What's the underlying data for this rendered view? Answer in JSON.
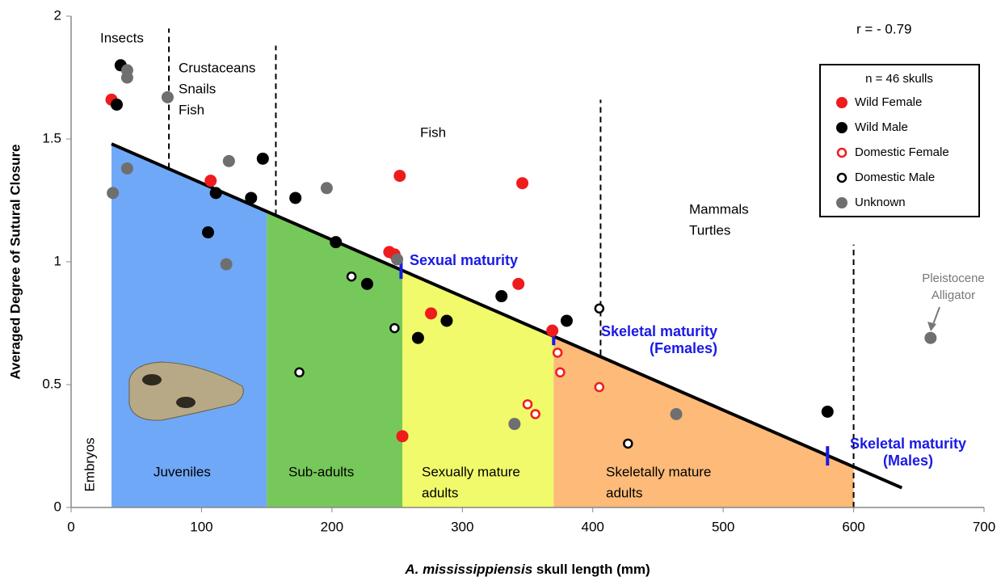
{
  "chart_data": {
    "type": "scatter",
    "x_label": [
      "A. mississippiensis",
      "skull length (mm)"
    ],
    "y_label": "Averaged Degree of Sutural Closure",
    "xlim": [
      0,
      700
    ],
    "xticks": [
      0,
      100,
      200,
      300,
      400,
      500,
      600,
      700
    ],
    "ylim": [
      0,
      2
    ],
    "yticks": [
      0,
      0.5,
      1,
      1.5,
      2
    ],
    "legend_title": "n = 46 skulls",
    "legend": "upper right",
    "correlation": "r = - 0.79",
    "series": [
      {
        "name": "Wild Female",
        "color": "#ee1c1c",
        "filled": true,
        "x": [
          31,
          107,
          252,
          346,
          244,
          248,
          343,
          276,
          369,
          254
        ],
        "values": [
          1.66,
          1.33,
          1.35,
          1.32,
          1.04,
          1.03,
          0.91,
          0.79,
          0.72,
          0.29
        ]
      },
      {
        "name": "Wild Male",
        "color": "#000000",
        "filled": true,
        "x": [
          38,
          35,
          147,
          111,
          138,
          172,
          105,
          203,
          227,
          330,
          380,
          288,
          266,
          580
        ],
        "values": [
          1.8,
          1.64,
          1.42,
          1.28,
          1.26,
          1.26,
          1.12,
          1.08,
          0.91,
          0.86,
          0.76,
          0.76,
          0.69,
          0.39
        ]
      },
      {
        "name": "Domestic Female",
        "color": "#ee1c1c",
        "filled": false,
        "x": [
          373,
          375,
          405,
          350,
          356
        ],
        "values": [
          0.63,
          0.55,
          0.49,
          0.42,
          0.38
        ]
      },
      {
        "name": "Domestic Male",
        "color": "#000000",
        "filled": false,
        "x": [
          215,
          248,
          405,
          175,
          427
        ],
        "values": [
          0.94,
          0.73,
          0.81,
          0.55,
          0.26
        ]
      },
      {
        "name": "Unknown",
        "color": "#6f6f6f",
        "filled": true,
        "x": [
          43,
          43,
          74,
          121,
          43,
          32,
          196,
          119,
          250,
          340,
          464,
          659
        ],
        "values": [
          1.78,
          1.75,
          1.67,
          1.41,
          1.38,
          1.28,
          1.3,
          0.99,
          1.01,
          0.34,
          0.38,
          0.69
        ]
      }
    ],
    "trend_line": {
      "x": [
        31,
        637
      ],
      "values": [
        1.48,
        0.08
      ]
    },
    "stages": [
      {
        "label": [
          "Juveniles"
        ],
        "x": [
          31,
          150
        ],
        "color": "#6fa8f7"
      },
      {
        "label": [
          "Sub-adults"
        ],
        "x": [
          150,
          254
        ],
        "color": "#77c85a"
      },
      {
        "label": [
          "Sexually mature",
          "adults"
        ],
        "x": [
          254,
          370
        ],
        "color": "#f0fa6a"
      },
      {
        "label": [
          "Skeletally mature",
          "adults"
        ],
        "x": [
          370,
          600
        ],
        "color": "#fdba78"
      }
    ],
    "embryos_label": "Embryos",
    "dividers": [
      {
        "x": 75,
        "y": [
          1.38,
          1.95
        ]
      },
      {
        "x": 157,
        "y": [
          1.19,
          1.88
        ]
      },
      {
        "x": 406,
        "y": [
          0.62,
          1.66
        ]
      },
      {
        "x": 600,
        "y": [
          0,
          1.07
        ]
      }
    ],
    "diets": [
      [
        "Insects"
      ],
      [
        "Crustaceans",
        "Snails",
        "Fish"
      ],
      [
        "Fish"
      ],
      [
        "Mammals",
        "Turtles"
      ]
    ],
    "maturity": [
      {
        "label": [
          "Sexual maturity"
        ],
        "x": 253,
        "y": 0.97
      },
      {
        "label": [
          "Skeletal maturity",
          "(Females)"
        ],
        "x": 370,
        "y": 0.7
      },
      {
        "label": [
          "Skeletal maturity",
          "(Males)"
        ],
        "x": 580,
        "y": 0.21
      }
    ],
    "pleistocene_label": [
      "Pleistocene",
      "Alligator"
    ]
  }
}
